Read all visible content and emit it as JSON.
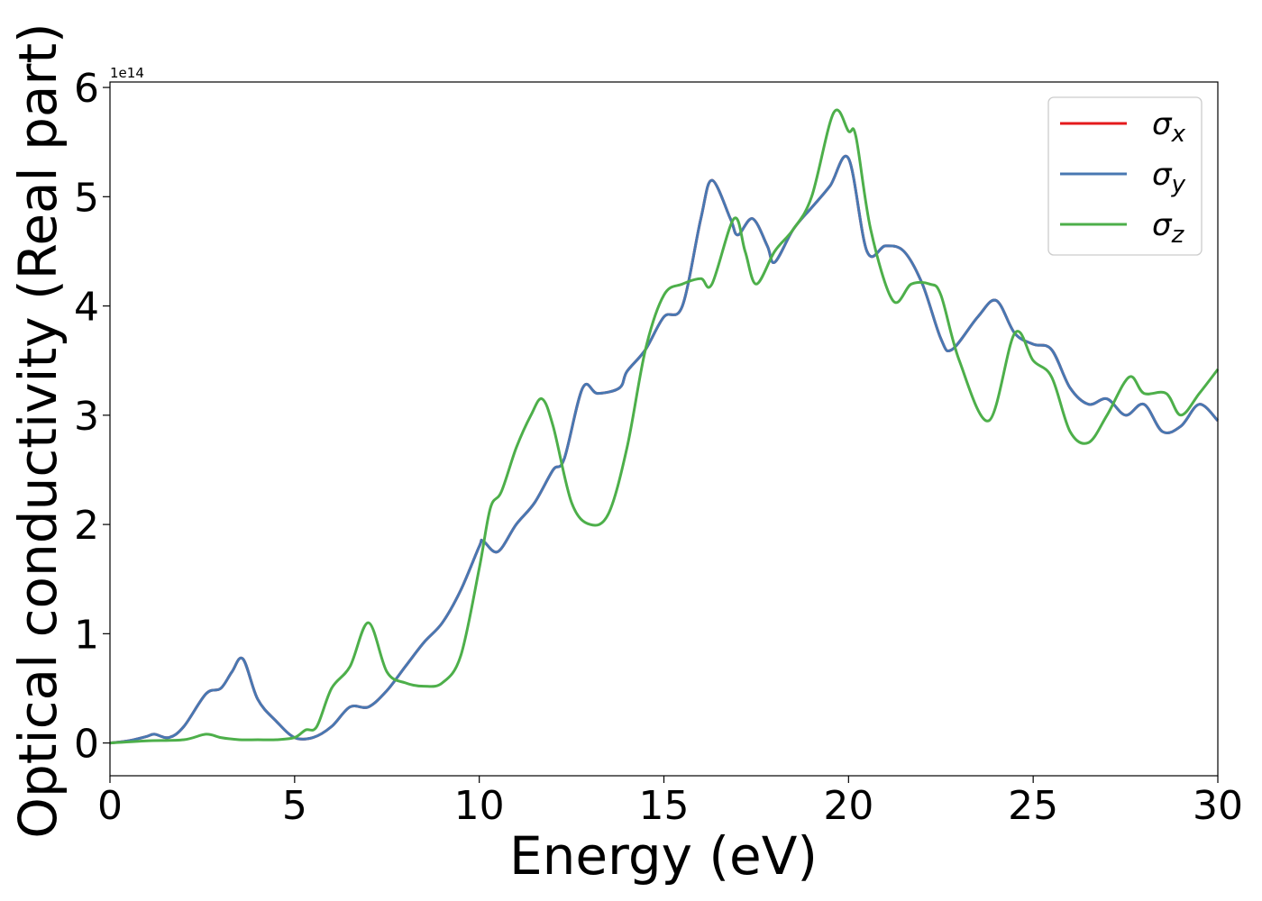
{
  "chart_data": {
    "type": "line",
    "xlabel": "Energy (eV)",
    "ylabel": "Optical conductivity (Real part)",
    "offset_text": "1e14",
    "xlim": [
      0,
      30
    ],
    "ylim": [
      -0.3,
      6.05
    ],
    "x_ticks": [
      0,
      5,
      10,
      15,
      20,
      25,
      30
    ],
    "y_ticks": [
      0,
      1,
      2,
      3,
      4,
      5,
      6
    ],
    "y_unit_scale": 100000000000000.0,
    "grid": false,
    "legend_position": "top-right",
    "series": [
      {
        "name": "σx",
        "symbol": "σ",
        "subscript": "x",
        "color": "#e41a1c",
        "x": [
          0,
          0.5,
          1,
          1.2,
          1.6,
          2,
          2.6,
          3,
          3.3,
          3.6,
          4,
          4.5,
          5,
          5.5,
          6,
          6.5,
          7,
          7.5,
          8,
          8.5,
          9,
          9.5,
          10,
          10.1,
          10.5,
          11,
          11.5,
          12,
          12.3,
          12.8,
          13.2,
          13.8,
          14,
          14.5,
          15,
          15.5,
          16,
          16.3,
          16.8,
          17,
          17.4,
          17.8,
          18,
          18.5,
          19,
          19.5,
          20,
          20.5,
          21,
          21.5,
          22,
          22.5,
          22.8,
          23.5,
          24,
          24.5,
          25,
          25.5,
          26,
          26.5,
          27,
          27.5,
          28,
          28.5,
          29,
          29.5,
          30
        ],
        "y": [
          0,
          0.02,
          0.06,
          0.08,
          0.05,
          0.15,
          0.45,
          0.5,
          0.65,
          0.77,
          0.4,
          0.2,
          0.05,
          0.05,
          0.15,
          0.33,
          0.33,
          0.48,
          0.7,
          0.92,
          1.1,
          1.4,
          1.8,
          1.85,
          1.75,
          2.0,
          2.2,
          2.5,
          2.6,
          3.25,
          3.2,
          3.25,
          3.4,
          3.6,
          3.9,
          4.0,
          4.8,
          5.15,
          4.8,
          4.65,
          4.8,
          4.55,
          4.4,
          4.7,
          4.9,
          5.1,
          5.35,
          4.5,
          4.55,
          4.5,
          4.2,
          3.7,
          3.6,
          3.9,
          4.05,
          3.75,
          3.65,
          3.6,
          3.25,
          3.1,
          3.15,
          3.0,
          3.1,
          2.85,
          2.9,
          3.1,
          2.95
        ]
      },
      {
        "name": "σy",
        "symbol": "σ",
        "subscript": "y",
        "color": "#4878b2",
        "x": [
          0,
          0.5,
          1,
          1.2,
          1.6,
          2,
          2.6,
          3,
          3.3,
          3.6,
          4,
          4.5,
          5,
          5.5,
          6,
          6.5,
          7,
          7.5,
          8,
          8.5,
          9,
          9.5,
          10,
          10.1,
          10.5,
          11,
          11.5,
          12,
          12.3,
          12.8,
          13.2,
          13.8,
          14,
          14.5,
          15,
          15.5,
          16,
          16.3,
          16.8,
          17,
          17.4,
          17.8,
          18,
          18.5,
          19,
          19.5,
          20,
          20.5,
          21,
          21.5,
          22,
          22.5,
          22.8,
          23.5,
          24,
          24.5,
          25,
          25.5,
          26,
          26.5,
          27,
          27.5,
          28,
          28.5,
          29,
          29.5,
          30
        ],
        "y": [
          0,
          0.02,
          0.06,
          0.08,
          0.05,
          0.15,
          0.45,
          0.5,
          0.65,
          0.77,
          0.4,
          0.2,
          0.05,
          0.05,
          0.15,
          0.33,
          0.33,
          0.48,
          0.7,
          0.92,
          1.1,
          1.4,
          1.8,
          1.85,
          1.75,
          2.0,
          2.2,
          2.5,
          2.6,
          3.25,
          3.2,
          3.25,
          3.4,
          3.6,
          3.9,
          4.0,
          4.8,
          5.15,
          4.8,
          4.65,
          4.8,
          4.55,
          4.4,
          4.7,
          4.9,
          5.1,
          5.35,
          4.5,
          4.55,
          4.5,
          4.2,
          3.7,
          3.6,
          3.9,
          4.05,
          3.75,
          3.65,
          3.6,
          3.25,
          3.1,
          3.15,
          3.0,
          3.1,
          2.85,
          2.9,
          3.1,
          2.95
        ]
      },
      {
        "name": "σz",
        "symbol": "σ",
        "subscript": "z",
        "color": "#4daf4a",
        "x": [
          0,
          1,
          2,
          2.6,
          3,
          3.5,
          4,
          4.5,
          5,
          5.3,
          5.6,
          6,
          6.5,
          7,
          7.5,
          8,
          8.5,
          9,
          9.5,
          10,
          10.3,
          10.6,
          11,
          11.4,
          11.7,
          12,
          12.5,
          13,
          13.5,
          14,
          14.5,
          15,
          15.5,
          16,
          16.3,
          16.9,
          17.2,
          17.5,
          18,
          18.5,
          19,
          19.6,
          20,
          20.2,
          20.6,
          21.2,
          21.7,
          22.2,
          22.5,
          23,
          23.8,
          24.5,
          25,
          25.5,
          26,
          26.5,
          27,
          27.6,
          28,
          28.6,
          29,
          29.5,
          30
        ],
        "y": [
          0,
          0.02,
          0.03,
          0.08,
          0.05,
          0.03,
          0.03,
          0.03,
          0.05,
          0.12,
          0.15,
          0.5,
          0.7,
          1.1,
          0.65,
          0.55,
          0.52,
          0.55,
          0.8,
          1.6,
          2.15,
          2.3,
          2.7,
          3.0,
          3.15,
          2.9,
          2.2,
          2.0,
          2.1,
          2.7,
          3.6,
          4.1,
          4.2,
          4.25,
          4.2,
          4.8,
          4.5,
          4.2,
          4.5,
          4.7,
          5.0,
          5.77,
          5.6,
          5.55,
          4.7,
          4.05,
          4.2,
          4.2,
          4.1,
          3.5,
          2.95,
          3.75,
          3.5,
          3.35,
          2.85,
          2.75,
          3.0,
          3.35,
          3.2,
          3.2,
          3.0,
          3.2,
          3.42
        ]
      }
    ]
  }
}
